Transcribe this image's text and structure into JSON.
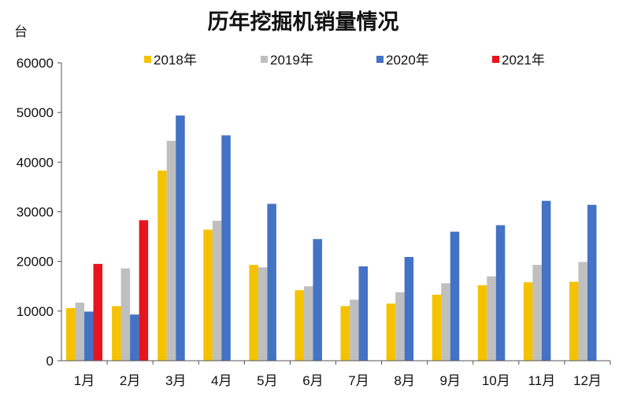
{
  "chart_data": {
    "type": "bar",
    "title": "历年挖掘机销量情况",
    "ylabel": "台",
    "xlabel": "",
    "ylim": [
      0,
      60000
    ],
    "yticks": [
      0,
      10000,
      20000,
      30000,
      40000,
      50000,
      60000
    ],
    "grid": false,
    "legend_position": "top",
    "categories": [
      "1月",
      "2月",
      "3月",
      "4月",
      "5月",
      "6月",
      "7月",
      "8月",
      "9月",
      "10月",
      "11月",
      "12月"
    ],
    "series": [
      {
        "name": "2018年",
        "color": "#F5C200",
        "values": [
          10600,
          11000,
          38300,
          26400,
          19300,
          14200,
          11000,
          11500,
          13300,
          15200,
          15800,
          15900
        ]
      },
      {
        "name": "2019年",
        "color": "#BFBFBF",
        "values": [
          11700,
          18600,
          44300,
          28200,
          18800,
          15000,
          12300,
          13800,
          15600,
          17000,
          19300,
          19900
        ]
      },
      {
        "name": "2020年",
        "color": "#4472C4",
        "values": [
          9900,
          9300,
          49400,
          45400,
          31600,
          24500,
          19000,
          20900,
          26000,
          27300,
          32200,
          31400
        ]
      },
      {
        "name": "2021年",
        "color": "#E8141B",
        "values": [
          19500,
          28300,
          null,
          null,
          null,
          null,
          null,
          null,
          null,
          null,
          null,
          null
        ]
      }
    ]
  }
}
